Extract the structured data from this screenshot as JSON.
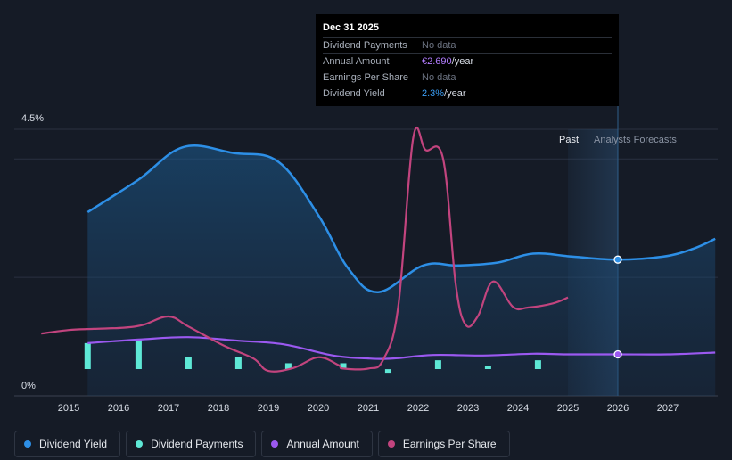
{
  "tooltip": {
    "date": "Dec 31 2025",
    "rows": [
      {
        "label": "Dividend Payments",
        "value": "No data"
      },
      {
        "label": "Annual Amount",
        "value": "€2.690",
        "unit": "/year"
      },
      {
        "label": "Earnings Per Share",
        "value": "No data"
      },
      {
        "label": "Dividend Yield",
        "value": "2.3%",
        "unit": "/year"
      }
    ]
  },
  "legend": [
    {
      "label": "Dividend Yield",
      "color": "#2d8fe6"
    },
    {
      "label": "Dividend Payments",
      "color": "#5ee8d6"
    },
    {
      "label": "Annual Amount",
      "color": "#9b59f0"
    },
    {
      "label": "Earnings Per Share",
      "color": "#c2447e"
    }
  ],
  "chart_data": {
    "type": "line",
    "y_axis": {
      "top_label": "4.5%",
      "bottom_label": "0%",
      "ylim": [
        0,
        4.5
      ]
    },
    "x_ticks": [
      "2015",
      "2016",
      "2017",
      "2018",
      "2019",
      "2020",
      "2021",
      "2022",
      "2023",
      "2024",
      "2025",
      "2026",
      "2027"
    ],
    "xlim": [
      2014.5,
      2027.95
    ],
    "regions": {
      "past_label": "Past",
      "forecast_label": "Analysts Forecasts",
      "forecast_start": 2025.0,
      "tooltip_date": 2026.0
    },
    "series": [
      {
        "name": "Dividend Yield",
        "color": "#2d8fe6",
        "points": [
          [
            2015.38,
            3.1
          ],
          [
            2016.4,
            3.65
          ],
          [
            2017.3,
            4.2
          ],
          [
            2018.3,
            4.1
          ],
          [
            2019.2,
            3.95
          ],
          [
            2020.0,
            3.05
          ],
          [
            2020.6,
            2.15
          ],
          [
            2021.2,
            1.75
          ],
          [
            2022.1,
            2.2
          ],
          [
            2022.8,
            2.2
          ],
          [
            2023.6,
            2.25
          ],
          [
            2024.3,
            2.4
          ],
          [
            2025.1,
            2.35
          ],
          [
            2026.0,
            2.3
          ],
          [
            2026.9,
            2.35
          ],
          [
            2027.5,
            2.48
          ],
          [
            2027.95,
            2.65
          ]
        ]
      },
      {
        "name": "Annual Amount",
        "color": "#9b59f0",
        "points": [
          [
            2015.38,
            0.89
          ],
          [
            2016.4,
            0.95
          ],
          [
            2017.4,
            0.99
          ],
          [
            2018.4,
            0.93
          ],
          [
            2019.3,
            0.87
          ],
          [
            2020.3,
            0.68
          ],
          [
            2021.0,
            0.63
          ],
          [
            2021.5,
            0.63
          ],
          [
            2022.3,
            0.69
          ],
          [
            2023.3,
            0.68
          ],
          [
            2024.3,
            0.71
          ],
          [
            2025.0,
            0.7
          ],
          [
            2026.0,
            0.7
          ],
          [
            2027.0,
            0.7
          ],
          [
            2027.95,
            0.73
          ]
        ]
      },
      {
        "name": "Earnings Per Share",
        "color": "#c2447e",
        "points": [
          [
            2014.45,
            1.05
          ],
          [
            2015.0,
            1.11
          ],
          [
            2015.5,
            1.13
          ],
          [
            2016.1,
            1.15
          ],
          [
            2016.5,
            1.2
          ],
          [
            2017.0,
            1.34
          ],
          [
            2017.4,
            1.17
          ],
          [
            2018.1,
            0.85
          ],
          [
            2018.7,
            0.63
          ],
          [
            2019.0,
            0.42
          ],
          [
            2019.5,
            0.47
          ],
          [
            2020.0,
            0.65
          ],
          [
            2020.4,
            0.52
          ],
          [
            2020.5,
            0.46
          ],
          [
            2021.0,
            0.46
          ],
          [
            2021.3,
            0.61
          ],
          [
            2021.6,
            1.5
          ],
          [
            2021.9,
            4.35
          ],
          [
            2022.15,
            4.15
          ],
          [
            2022.5,
            4.0
          ],
          [
            2022.75,
            1.9
          ],
          [
            2022.95,
            1.2
          ],
          [
            2023.2,
            1.35
          ],
          [
            2023.5,
            1.93
          ],
          [
            2023.9,
            1.5
          ],
          [
            2024.2,
            1.49
          ],
          [
            2024.7,
            1.56
          ],
          [
            2025.0,
            1.66
          ]
        ]
      }
    ],
    "bars": {
      "name": "Dividend Payments",
      "color": "#5ee8d6",
      "points": [
        [
          2015.38,
          0.89
        ],
        [
          2016.4,
          0.95
        ],
        [
          2017.4,
          0.65
        ],
        [
          2018.4,
          0.65
        ],
        [
          2019.4,
          0.55
        ],
        [
          2020.5,
          0.55
        ],
        [
          2021.4,
          0.45
        ],
        [
          2022.4,
          0.6
        ],
        [
          2023.4,
          0.5
        ],
        [
          2024.4,
          0.6
        ]
      ]
    },
    "markers": [
      {
        "series": "Dividend Yield",
        "x": 2026.0,
        "y": 2.3
      },
      {
        "series": "Annual Amount",
        "x": 2026.0,
        "y": 0.7
      }
    ]
  }
}
